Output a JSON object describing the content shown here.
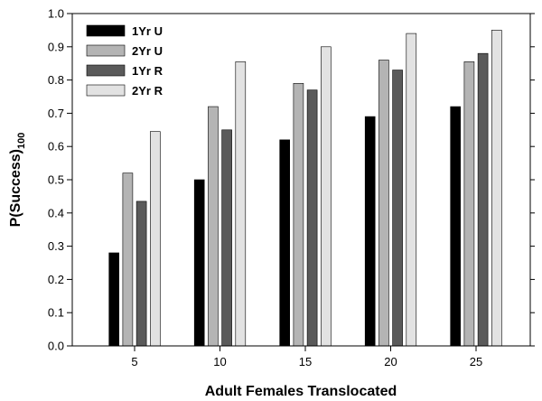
{
  "chart_data": {
    "type": "bar",
    "categories": [
      "5",
      "10",
      "15",
      "20",
      "25"
    ],
    "series": [
      {
        "name": "1Yr U",
        "color": "#000000",
        "values": [
          0.28,
          0.5,
          0.62,
          0.69,
          0.72
        ]
      },
      {
        "name": "2Yr U",
        "color": "#b4b4b4",
        "values": [
          0.52,
          0.72,
          0.79,
          0.86,
          0.855
        ]
      },
      {
        "name": "1Yr R",
        "color": "#5a5a5a",
        "values": [
          0.435,
          0.65,
          0.77,
          0.83,
          0.88
        ]
      },
      {
        "name": "2Yr R",
        "color": "#e2e2e2",
        "values": [
          0.645,
          0.855,
          0.9,
          0.94,
          0.95
        ]
      }
    ],
    "xlabel": "Adult Females Translocated",
    "ylabel_main": "P(Success)",
    "ylabel_sub": "100",
    "ylim": [
      0.0,
      1.0
    ],
    "yticks": [
      "0.0",
      "0.1",
      "0.2",
      "0.3",
      "0.4",
      "0.5",
      "0.6",
      "0.7",
      "0.8",
      "0.9",
      "1.0"
    ],
    "legend_position": "top-left",
    "grid": false
  }
}
